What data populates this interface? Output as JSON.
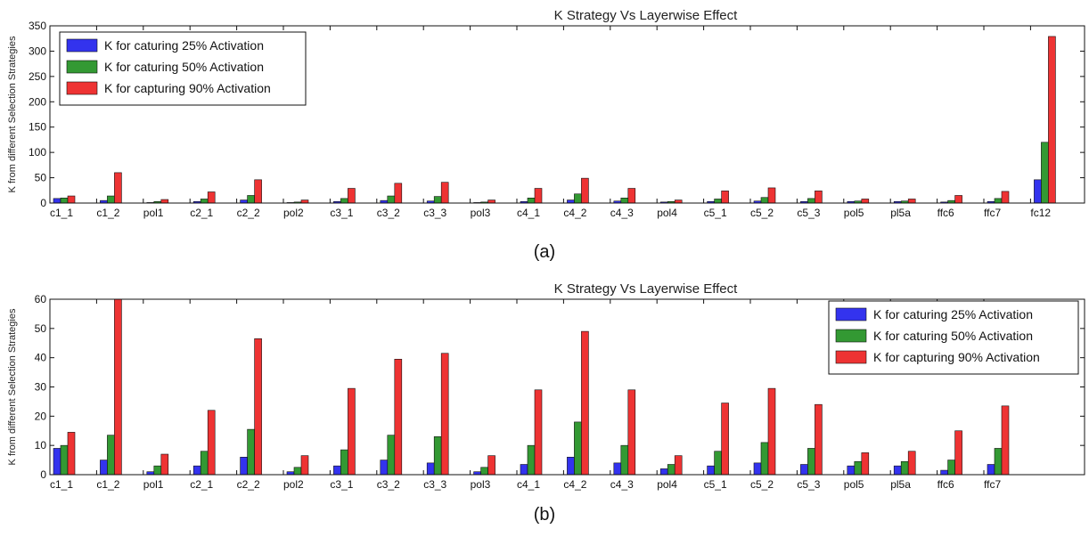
{
  "chart_data": [
    {
      "panel_label": "(a)",
      "type": "bar",
      "title": "K Strategy Vs Layerwise Effect",
      "xlabel": "",
      "ylabel": "K from different Selection Strategies",
      "ylim": [
        0,
        350
      ],
      "yticks": [
        0,
        50,
        100,
        150,
        200,
        250,
        300,
        350
      ],
      "grid": false,
      "legend_position": "upper-left",
      "categories": [
        "c1_1",
        "c1_2",
        "pol1",
        "c2_1",
        "c2_2",
        "pol2",
        "c3_1",
        "c3_2",
        "c3_3",
        "pol3",
        "c4_1",
        "c4_2",
        "c4_3",
        "pol4",
        "c5_1",
        "c5_2",
        "c5_3",
        "pol5",
        "pl5a",
        "ffc6",
        "ffc7",
        "fc12"
      ],
      "series": [
        {
          "name": "K for caturing 25% Activation",
          "color": "#3333ee",
          "values": [
            9,
            5,
            1,
            3,
            6,
            1,
            3,
            5,
            4,
            1,
            3,
            6,
            4,
            2,
            3,
            4,
            3,
            3,
            3,
            2,
            3,
            46
          ]
        },
        {
          "name": "K for caturing 50% Activation",
          "color": "#339933",
          "values": [
            10,
            14,
            3,
            8,
            15,
            2,
            9,
            14,
            13,
            2,
            10,
            18,
            10,
            3,
            8,
            11,
            9,
            4,
            4,
            5,
            9,
            120
          ]
        },
        {
          "name": "K for capturing 90% Activation",
          "color": "#ee3333",
          "values": [
            14,
            60,
            7,
            22,
            46,
            6,
            29,
            39,
            41,
            6,
            29,
            49,
            29,
            6,
            24,
            30,
            24,
            8,
            8,
            15,
            23,
            329
          ]
        }
      ]
    },
    {
      "panel_label": "(b)",
      "type": "bar",
      "title": "K Strategy Vs Layerwise Effect",
      "xlabel": "",
      "ylabel": "K from different Selection Strategies",
      "ylim": [
        0,
        60
      ],
      "yticks": [
        0,
        10,
        20,
        30,
        40,
        50,
        60
      ],
      "grid": false,
      "legend_position": "upper-right",
      "categories": [
        "c1_1",
        "c1_2",
        "pol1",
        "c2_1",
        "c2_2",
        "pol2",
        "c3_1",
        "c3_2",
        "c3_3",
        "pol3",
        "c4_1",
        "c4_2",
        "c4_3",
        "pol4",
        "c5_1",
        "c5_2",
        "c5_3",
        "pol5",
        "pl5a",
        "ffc6",
        "ffc7"
      ],
      "series": [
        {
          "name": "K for caturing 25% Activation",
          "color": "#3333ee",
          "values": [
            9,
            5,
            1,
            3,
            6,
            1,
            3,
            5,
            4,
            1,
            3.5,
            6,
            4,
            2,
            3,
            4,
            3.5,
            3,
            3,
            1.5,
            3.5
          ]
        },
        {
          "name": "K for caturing 50% Activation",
          "color": "#339933",
          "values": [
            10,
            13.5,
            3,
            8,
            15.5,
            2.5,
            8.5,
            13.5,
            13,
            2.5,
            10,
            18,
            10,
            3.5,
            8,
            11,
            9,
            4.5,
            4.5,
            5,
            9
          ]
        },
        {
          "name": "K for capturing 90% Activation",
          "color": "#ee3333",
          "values": [
            14.5,
            60,
            7,
            22,
            46.5,
            6.5,
            29.5,
            39.5,
            41.5,
            6.5,
            29,
            49,
            29,
            6.5,
            24.5,
            29.5,
            24,
            7.5,
            8,
            15,
            23.5
          ]
        }
      ]
    }
  ]
}
